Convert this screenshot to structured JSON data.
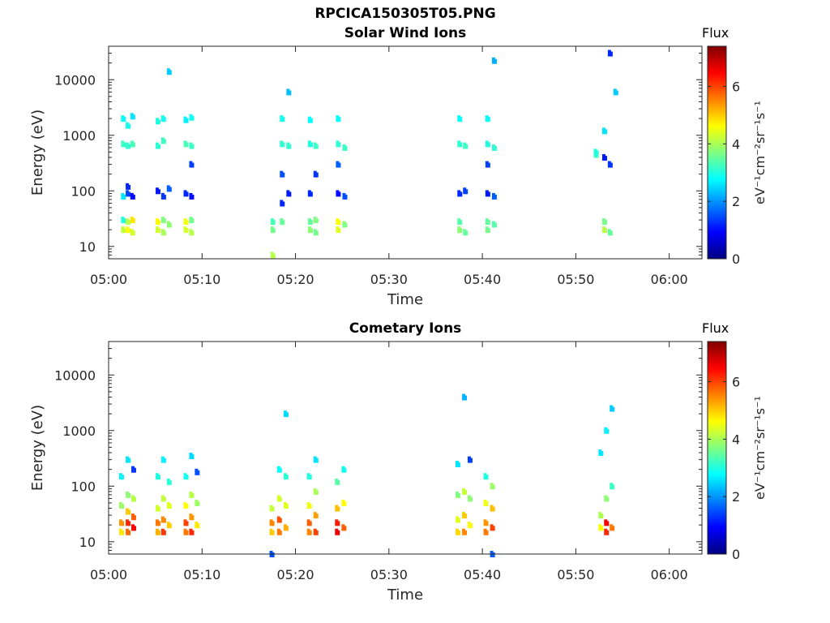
{
  "figure": {
    "title": "RPCICA150305T05.PNG"
  },
  "chart_data": [
    {
      "type": "heatmap",
      "title": "Solar Wind Ions",
      "xlabel": "Time",
      "ylabel": "Energy (eV)",
      "x_ticks": [
        "05:00",
        "05:10",
        "05:20",
        "05:30",
        "05:40",
        "05:50",
        "06:00"
      ],
      "y_ticks": [
        "10",
        "100",
        "1000",
        "10000"
      ],
      "ylim": [
        6,
        40000
      ],
      "yscale": "log",
      "xlim_minutes": [
        0,
        63.5
      ],
      "colorbar": {
        "label": "Flux",
        "units": "eV⁻¹cm⁻²sr⁻¹s⁻¹",
        "ticks": [
          "0",
          "2",
          "4",
          "6"
        ],
        "range": [
          0,
          7.4
        ],
        "colormap": "jet"
      },
      "cells": [
        [
          1.5,
          20,
          4.2
        ],
        [
          1.5,
          30,
          3.0
        ],
        [
          1.5,
          80,
          2.6
        ],
        [
          1.5,
          700,
          3.2
        ],
        [
          1.5,
          2000,
          2.8
        ],
        [
          2.0,
          20,
          4.6
        ],
        [
          2.0,
          28,
          4.1
        ],
        [
          2.0,
          90,
          1.4
        ],
        [
          2.0,
          120,
          1.2
        ],
        [
          2.0,
          650,
          3.1
        ],
        [
          2.0,
          1500,
          2.9
        ],
        [
          2.5,
          18,
          4.3
        ],
        [
          2.5,
          30,
          4.8
        ],
        [
          2.5,
          80,
          1.0
        ],
        [
          2.5,
          700,
          3.3
        ],
        [
          2.5,
          2200,
          2.6
        ],
        [
          5.2,
          20,
          4.3
        ],
        [
          5.2,
          28,
          4.6
        ],
        [
          5.2,
          100,
          1.1
        ],
        [
          5.2,
          650,
          3.1
        ],
        [
          5.2,
          1800,
          3.0
        ],
        [
          5.8,
          18,
          4.0
        ],
        [
          5.8,
          30,
          3.7
        ],
        [
          5.8,
          80,
          1.3
        ],
        [
          5.8,
          800,
          3.2
        ],
        [
          5.8,
          2000,
          2.9
        ],
        [
          6.4,
          25,
          3.8
        ],
        [
          6.4,
          110,
          1.6
        ],
        [
          6.4,
          14000,
          2.4
        ],
        [
          8.2,
          20,
          4.3
        ],
        [
          8.2,
          28,
          4.5
        ],
        [
          8.2,
          90,
          1.2
        ],
        [
          8.2,
          700,
          3.3
        ],
        [
          8.2,
          1900,
          2.7
        ],
        [
          8.8,
          18,
          4.1
        ],
        [
          8.8,
          30,
          3.6
        ],
        [
          8.8,
          80,
          1.0
        ],
        [
          8.8,
          300,
          1.4
        ],
        [
          8.8,
          650,
          3.2
        ],
        [
          8.8,
          2100,
          2.9
        ],
        [
          17.5,
          20,
          3.6
        ],
        [
          17.5,
          28,
          3.3
        ],
        [
          17.5,
          7,
          4.1
        ],
        [
          18.5,
          28,
          3.5
        ],
        [
          18.5,
          60,
          1.2
        ],
        [
          18.5,
          200,
          1.5
        ],
        [
          18.5,
          700,
          3.1
        ],
        [
          18.5,
          2000,
          2.9
        ],
        [
          19.2,
          90,
          1.1
        ],
        [
          19.2,
          650,
          3.1
        ],
        [
          19.2,
          6000,
          2.3
        ],
        [
          21.5,
          20,
          3.8
        ],
        [
          21.5,
          28,
          3.5
        ],
        [
          21.5,
          90,
          1.2
        ],
        [
          21.5,
          700,
          3.0
        ],
        [
          21.5,
          1900,
          2.8
        ],
        [
          22.1,
          18,
          3.6
        ],
        [
          22.1,
          30,
          3.7
        ],
        [
          22.1,
          200,
          1.3
        ],
        [
          22.1,
          650,
          3.2
        ],
        [
          24.5,
          20,
          4.4
        ],
        [
          24.5,
          28,
          4.6
        ],
        [
          24.5,
          90,
          1.0
        ],
        [
          24.5,
          300,
          1.6
        ],
        [
          24.5,
          700,
          3.1
        ],
        [
          24.5,
          2000,
          2.8
        ],
        [
          25.2,
          25,
          3.7
        ],
        [
          25.2,
          80,
          1.5
        ],
        [
          25.2,
          600,
          3.2
        ],
        [
          37.5,
          20,
          3.8
        ],
        [
          37.5,
          28,
          3.4
        ],
        [
          37.5,
          90,
          1.2
        ],
        [
          37.5,
          700,
          3.1
        ],
        [
          37.5,
          2000,
          2.8
        ],
        [
          38.1,
          18,
          3.5
        ],
        [
          38.1,
          100,
          1.4
        ],
        [
          38.1,
          650,
          3.2
        ],
        [
          40.5,
          20,
          3.6
        ],
        [
          40.5,
          28,
          3.5
        ],
        [
          40.5,
          90,
          1.1
        ],
        [
          40.5,
          300,
          1.4
        ],
        [
          40.5,
          700,
          3.0
        ],
        [
          40.5,
          2000,
          2.8
        ],
        [
          41.2,
          25,
          3.4
        ],
        [
          41.2,
          80,
          1.6
        ],
        [
          41.2,
          600,
          3.1
        ],
        [
          41.2,
          22000,
          2.2
        ],
        [
          52.1,
          450,
          3.2
        ],
        [
          52.1,
          500,
          3.0
        ],
        [
          53.0,
          20,
          4.1
        ],
        [
          53.0,
          28,
          3.6
        ],
        [
          53.0,
          400,
          1.1
        ],
        [
          53.0,
          1200,
          2.6
        ],
        [
          53.6,
          18,
          3.5
        ],
        [
          53.6,
          300,
          1.3
        ],
        [
          53.6,
          30000,
          1.2
        ],
        [
          54.2,
          6000,
          2.4
        ]
      ]
    },
    {
      "type": "heatmap",
      "title": "Cometary Ions",
      "xlabel": "Time",
      "ylabel": "Energy (eV)",
      "x_ticks": [
        "05:00",
        "05:10",
        "05:20",
        "05:30",
        "05:40",
        "05:50",
        "06:00"
      ],
      "y_ticks": [
        "10",
        "100",
        "1000",
        "10000"
      ],
      "ylim": [
        6,
        40000
      ],
      "yscale": "log",
      "xlim_minutes": [
        0,
        63.5
      ],
      "colorbar": {
        "label": "Flux",
        "units": "eV⁻¹cm⁻²sr⁻¹s⁻¹",
        "ticks": [
          "0",
          "2",
          "4",
          "6"
        ],
        "range": [
          0,
          7.4
        ],
        "colormap": "jet"
      },
      "cells": [
        [
          1.3,
          15,
          4.8
        ],
        [
          1.3,
          22,
          5.4
        ],
        [
          1.3,
          45,
          3.9
        ],
        [
          1.3,
          150,
          2.7
        ],
        [
          2.0,
          15,
          5.7
        ],
        [
          2.0,
          22,
          6.2
        ],
        [
          2.0,
          35,
          5.0
        ],
        [
          2.0,
          70,
          3.8
        ],
        [
          2.0,
          300,
          2.6
        ],
        [
          2.6,
          18,
          6.5
        ],
        [
          2.6,
          28,
          5.8
        ],
        [
          2.6,
          60,
          4.1
        ],
        [
          2.6,
          200,
          1.3
        ],
        [
          5.2,
          15,
          5.2
        ],
        [
          5.2,
          22,
          5.6
        ],
        [
          5.2,
          40,
          4.3
        ],
        [
          5.2,
          150,
          3.0
        ],
        [
          5.8,
          15,
          6.1
        ],
        [
          5.8,
          25,
          5.5
        ],
        [
          5.8,
          60,
          4.2
        ],
        [
          5.8,
          300,
          2.7
        ],
        [
          6.4,
          20,
          5.0
        ],
        [
          6.4,
          45,
          4.4
        ],
        [
          6.4,
          120,
          3.1
        ],
        [
          8.2,
          15,
          5.6
        ],
        [
          8.2,
          22,
          6.0
        ],
        [
          8.2,
          45,
          4.6
        ],
        [
          8.2,
          150,
          2.9
        ],
        [
          8.8,
          15,
          6.2
        ],
        [
          8.8,
          28,
          5.4
        ],
        [
          8.8,
          70,
          4.1
        ],
        [
          8.8,
          350,
          2.5
        ],
        [
          9.4,
          20,
          4.8
        ],
        [
          9.4,
          50,
          3.9
        ],
        [
          9.4,
          180,
          1.5
        ],
        [
          17.4,
          15,
          5.0
        ],
        [
          17.4,
          22,
          5.5
        ],
        [
          17.4,
          40,
          4.2
        ],
        [
          17.4,
          6,
          1.5
        ],
        [
          18.2,
          15,
          5.6
        ],
        [
          18.2,
          25,
          5.9
        ],
        [
          18.2,
          60,
          4.3
        ],
        [
          18.2,
          200,
          2.8
        ],
        [
          18.9,
          18,
          5.2
        ],
        [
          18.9,
          45,
          4.4
        ],
        [
          18.9,
          150,
          3.1
        ],
        [
          18.9,
          2000,
          2.5
        ],
        [
          21.4,
          15,
          5.5
        ],
        [
          21.4,
          22,
          5.8
        ],
        [
          21.4,
          45,
          4.5
        ],
        [
          21.4,
          150,
          3.0
        ],
        [
          22.1,
          15,
          6.0
        ],
        [
          22.1,
          30,
          5.3
        ],
        [
          22.1,
          80,
          4.0
        ],
        [
          22.1,
          300,
          2.6
        ],
        [
          24.4,
          15,
          6.6
        ],
        [
          24.4,
          22,
          6.3
        ],
        [
          24.4,
          40,
          5.1
        ],
        [
          24.4,
          120,
          3.4
        ],
        [
          25.1,
          18,
          5.8
        ],
        [
          25.1,
          50,
          4.6
        ],
        [
          25.1,
          200,
          2.9
        ],
        [
          37.3,
          15,
          4.9
        ],
        [
          37.3,
          25,
          4.4
        ],
        [
          37.3,
          70,
          3.7
        ],
        [
          37.3,
          250,
          2.6
        ],
        [
          38.0,
          15,
          5.5
        ],
        [
          38.0,
          30,
          5.0
        ],
        [
          38.0,
          80,
          4.2
        ],
        [
          38.0,
          4000,
          2.2
        ],
        [
          38.6,
          20,
          4.6
        ],
        [
          38.6,
          60,
          3.8
        ],
        [
          38.6,
          300,
          1.4
        ],
        [
          40.3,
          15,
          5.6
        ],
        [
          40.3,
          22,
          5.4
        ],
        [
          40.3,
          50,
          4.5
        ],
        [
          40.3,
          150,
          3.0
        ],
        [
          41.0,
          18,
          6.0
        ],
        [
          41.0,
          40,
          5.1
        ],
        [
          41.0,
          100,
          3.9
        ],
        [
          41.0,
          6,
          1.6
        ],
        [
          52.6,
          18,
          4.6
        ],
        [
          52.6,
          30,
          4.0
        ],
        [
          52.6,
          400,
          2.6
        ],
        [
          53.2,
          15,
          6.2
        ],
        [
          53.2,
          22,
          6.5
        ],
        [
          53.2,
          60,
          3.8
        ],
        [
          53.2,
          1000,
          2.7
        ],
        [
          53.8,
          18,
          5.6
        ],
        [
          53.8,
          100,
          3.2
        ],
        [
          53.8,
          2500,
          2.4
        ]
      ]
    }
  ]
}
